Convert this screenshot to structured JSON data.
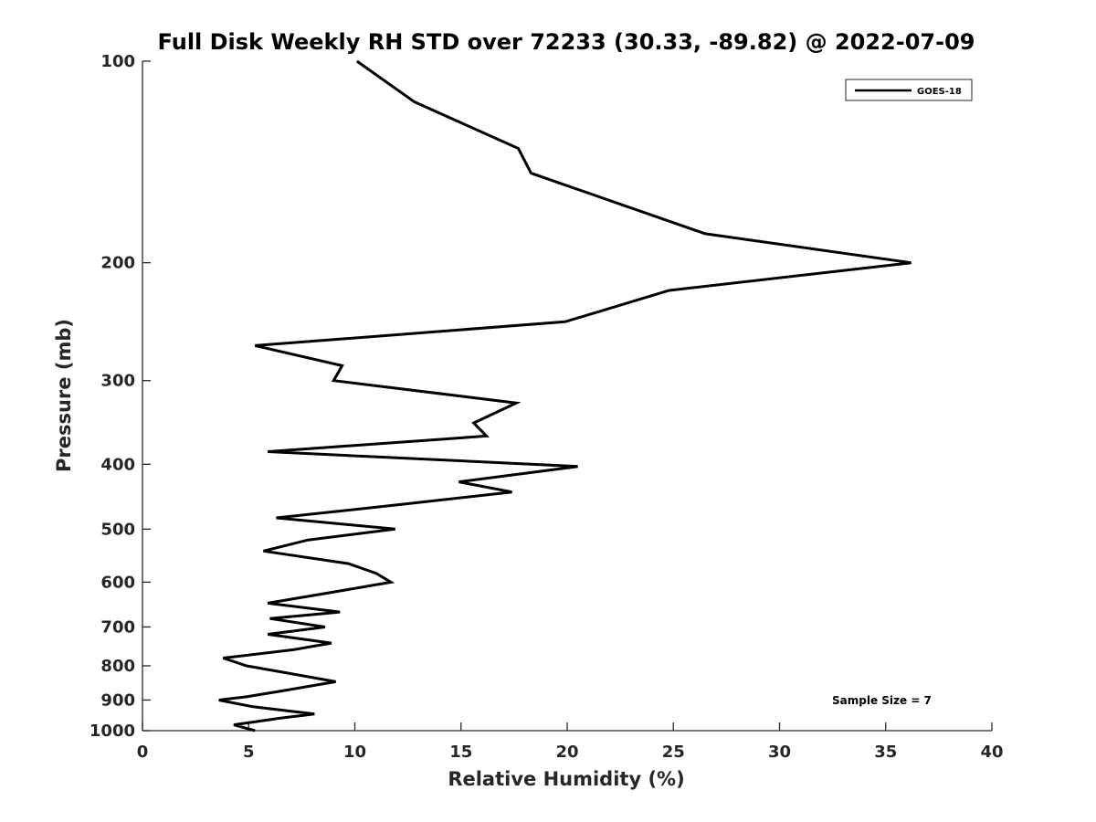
{
  "chart_data": {
    "type": "line",
    "title": "Full Disk Weekly RH STD over 72233 (30.33, -89.82) @ 2022-07-09",
    "xlabel": "Relative Humidity (%)",
    "ylabel": "Pressure (mb)",
    "xlim": [
      0,
      40
    ],
    "ylim": [
      100,
      1000
    ],
    "y_scale": "log",
    "y_reversed": true,
    "x_ticks": [
      "0",
      "5",
      "10",
      "15",
      "20",
      "25",
      "30",
      "35",
      "40"
    ],
    "y_ticks": [
      "100",
      "200",
      "300",
      "400",
      "500",
      "600",
      "700",
      "800",
      "900",
      "1000"
    ],
    "grid": false,
    "legend_position": "top-right",
    "series": [
      {
        "name": "GOES-18",
        "color": "#000000",
        "points": [
          [
            10.1,
            100
          ],
          [
            12.8,
            115
          ],
          [
            17.7,
            135
          ],
          [
            18.3,
            147
          ],
          [
            26.5,
            181
          ],
          [
            36.2,
            200
          ],
          [
            24.8,
            220
          ],
          [
            19.9,
            245
          ],
          [
            5.3,
            266
          ],
          [
            9.4,
            285
          ],
          [
            9.0,
            300
          ],
          [
            17.6,
            324
          ],
          [
            15.6,
            347
          ],
          [
            16.2,
            363
          ],
          [
            5.9,
            383
          ],
          [
            20.5,
            403
          ],
          [
            14.9,
            425
          ],
          [
            17.4,
            440
          ],
          [
            12.0,
            460
          ],
          [
            6.3,
            481
          ],
          [
            11.9,
            500
          ],
          [
            7.8,
            519
          ],
          [
            5.7,
            539
          ],
          [
            9.7,
            563
          ],
          [
            11.0,
            582
          ],
          [
            11.7,
            600
          ],
          [
            8.7,
            623
          ],
          [
            5.9,
            645
          ],
          [
            9.3,
            665
          ],
          [
            6.0,
            680
          ],
          [
            8.6,
            700
          ],
          [
            5.9,
            718
          ],
          [
            8.9,
            740
          ],
          [
            7.1,
            757
          ],
          [
            3.8,
            779
          ],
          [
            4.9,
            800
          ],
          [
            7.0,
            822
          ],
          [
            9.1,
            845
          ],
          [
            6.6,
            872
          ],
          [
            4.9,
            890
          ],
          [
            3.6,
            900
          ],
          [
            5.2,
            921
          ],
          [
            8.1,
            944
          ],
          [
            6.5,
            958
          ],
          [
            4.3,
            980
          ],
          [
            5.3,
            1000
          ]
        ]
      }
    ],
    "annotations": [
      "Sample Size = 7"
    ]
  }
}
